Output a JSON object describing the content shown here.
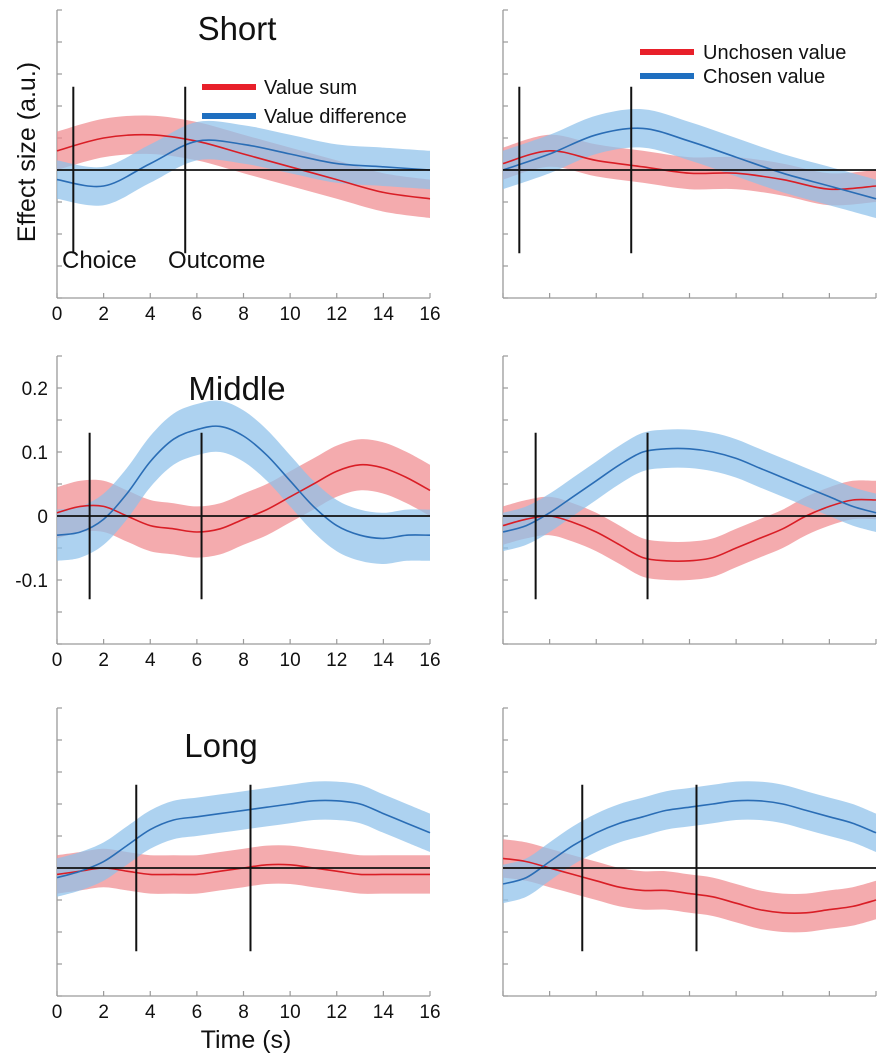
{
  "figure": {
    "ylabel": "Effect size (a.u.)",
    "xlabel": "Time (s)"
  },
  "legend_left": {
    "items": [
      {
        "label": "Value sum",
        "color": "#e8202a"
      },
      {
        "label": "Value difference",
        "color": "#1f6fc0"
      }
    ]
  },
  "legend_right": {
    "items": [
      {
        "label": "Unchosen value",
        "color": "#e8202a"
      },
      {
        "label": "Chosen value",
        "color": "#1f6fc0"
      }
    ]
  },
  "event_labels": {
    "choice": "Choice",
    "outcome": "Outcome"
  },
  "colors": {
    "red_line": "#d91e26",
    "red_band": "#f08a8f",
    "blue_line": "#2a6db5",
    "blue_band": "#8ec0ea"
  },
  "chart_data": [
    {
      "type": "line",
      "row": "Short",
      "column": "left",
      "title": "Short",
      "xlim": [
        0,
        16
      ],
      "ylim": [
        -0.2,
        0.25
      ],
      "x_ticks": [
        "0",
        "2",
        "4",
        "6",
        "8",
        "10",
        "12",
        "14",
        "16"
      ],
      "y_ticks": [],
      "events": [
        0.7,
        5.5
      ],
      "x": [
        0,
        2,
        4,
        6,
        8,
        10,
        12,
        14,
        16
      ],
      "series": [
        {
          "name": "Value sum",
          "color": "red",
          "values": [
            0.03,
            0.05,
            0.055,
            0.045,
            0.025,
            0.005,
            -0.015,
            -0.035,
            -0.045
          ],
          "ci": 0.03
        },
        {
          "name": "Value difference",
          "color": "blue",
          "values": [
            -0.015,
            -0.025,
            0.01,
            0.045,
            0.04,
            0.025,
            0.01,
            0.005,
            0.0
          ],
          "ci": 0.03
        }
      ]
    },
    {
      "type": "line",
      "row": "Short",
      "column": "right",
      "title": "",
      "xlim": [
        0,
        16
      ],
      "ylim": [
        -0.2,
        0.25
      ],
      "x_ticks": [],
      "y_ticks": [],
      "events": [
        0.7,
        5.5
      ],
      "x": [
        0,
        2,
        4,
        6,
        8,
        10,
        12,
        14,
        16
      ],
      "series": [
        {
          "name": "Unchosen value",
          "color": "red",
          "values": [
            0.01,
            0.03,
            0.015,
            0.005,
            -0.005,
            -0.005,
            -0.015,
            -0.03,
            -0.025
          ],
          "ci": 0.025
        },
        {
          "name": "Chosen value",
          "color": "blue",
          "values": [
            0.0,
            0.025,
            0.055,
            0.065,
            0.045,
            0.02,
            -0.005,
            -0.025,
            -0.045
          ],
          "ci": 0.03
        }
      ]
    },
    {
      "type": "line",
      "row": "Middle",
      "column": "left",
      "title": "Middle",
      "xlim": [
        0,
        16
      ],
      "ylim": [
        -0.2,
        0.25
      ],
      "x_ticks": [
        "0",
        "2",
        "4",
        "6",
        "8",
        "10",
        "12",
        "14",
        "16"
      ],
      "y_ticks": [
        {
          "value": -0.1,
          "label": "-0.1"
        },
        {
          "value": 0,
          "label": "0"
        },
        {
          "value": 0.1,
          "label": "0.1"
        },
        {
          "value": 0.2,
          "label": "0.2"
        }
      ],
      "events": [
        1.4,
        6.2
      ],
      "x": [
        0,
        1,
        2,
        3,
        4,
        5,
        6,
        7,
        8,
        9,
        10,
        11,
        12,
        13,
        14,
        15,
        16
      ],
      "series": [
        {
          "name": "Value sum",
          "color": "red",
          "values": [
            0.005,
            0.015,
            0.015,
            0.0,
            -0.015,
            -0.02,
            -0.025,
            -0.02,
            -0.005,
            0.01,
            0.03,
            0.05,
            0.07,
            0.08,
            0.075,
            0.06,
            0.04
          ],
          "ci": 0.04
        },
        {
          "name": "Value difference",
          "color": "blue",
          "values": [
            -0.03,
            -0.025,
            -0.005,
            0.035,
            0.085,
            0.12,
            0.135,
            0.14,
            0.125,
            0.095,
            0.055,
            0.015,
            -0.015,
            -0.03,
            -0.035,
            -0.03,
            -0.03
          ],
          "ci": 0.04
        }
      ]
    },
    {
      "type": "line",
      "row": "Middle",
      "column": "right",
      "title": "",
      "xlim": [
        0,
        16
      ],
      "ylim": [
        -0.2,
        0.25
      ],
      "x_ticks": [],
      "y_ticks": [],
      "events": [
        1.4,
        6.2
      ],
      "x": [
        0,
        1,
        2,
        3,
        4,
        5,
        6,
        7,
        8,
        9,
        10,
        11,
        12,
        13,
        14,
        15,
        16
      ],
      "series": [
        {
          "name": "Unchosen value",
          "color": "red",
          "values": [
            -0.015,
            -0.005,
            0.0,
            -0.01,
            -0.025,
            -0.045,
            -0.065,
            -0.07,
            -0.07,
            -0.065,
            -0.05,
            -0.035,
            -0.02,
            0.0,
            0.015,
            0.025,
            0.025
          ],
          "ci": 0.03
        },
        {
          "name": "Chosen value",
          "color": "blue",
          "values": [
            -0.025,
            -0.015,
            0.005,
            0.03,
            0.055,
            0.08,
            0.1,
            0.105,
            0.105,
            0.1,
            0.09,
            0.075,
            0.06,
            0.045,
            0.03,
            0.015,
            0.005
          ],
          "ci": 0.03
        }
      ]
    },
    {
      "type": "line",
      "row": "Long",
      "column": "left",
      "title": "Long",
      "xlim": [
        0,
        16
      ],
      "ylim": [
        -0.2,
        0.25
      ],
      "x_ticks": [
        "0",
        "2",
        "4",
        "6",
        "8",
        "10",
        "12",
        "14",
        "16"
      ],
      "y_ticks": [],
      "events": [
        3.4,
        8.3
      ],
      "x": [
        0,
        1,
        2,
        3,
        4,
        5,
        6,
        7,
        8,
        9,
        10,
        11,
        12,
        13,
        14,
        15,
        16
      ],
      "series": [
        {
          "name": "Value sum",
          "color": "red",
          "values": [
            -0.01,
            -0.005,
            0.0,
            -0.005,
            -0.01,
            -0.01,
            -0.01,
            -0.005,
            0.0,
            0.005,
            0.005,
            0.0,
            -0.005,
            -0.01,
            -0.01,
            -0.01,
            -0.01
          ],
          "ci": 0.03
        },
        {
          "name": "Value difference",
          "color": "blue",
          "values": [
            -0.015,
            -0.005,
            0.01,
            0.035,
            0.06,
            0.075,
            0.08,
            0.085,
            0.09,
            0.095,
            0.1,
            0.105,
            0.105,
            0.1,
            0.085,
            0.07,
            0.055
          ],
          "ci": 0.03
        }
      ]
    },
    {
      "type": "line",
      "row": "Long",
      "column": "right",
      "title": "",
      "xlim": [
        0,
        16
      ],
      "ylim": [
        -0.2,
        0.25
      ],
      "x_ticks": [],
      "y_ticks": [],
      "events": [
        3.4,
        8.3
      ],
      "x": [
        0,
        1,
        2,
        3,
        4,
        5,
        6,
        7,
        8,
        9,
        10,
        11,
        12,
        13,
        14,
        15,
        16
      ],
      "series": [
        {
          "name": "Unchosen value",
          "color": "red",
          "values": [
            0.015,
            0.01,
            0.0,
            -0.01,
            -0.02,
            -0.03,
            -0.035,
            -0.035,
            -0.04,
            -0.045,
            -0.055,
            -0.065,
            -0.07,
            -0.07,
            -0.065,
            -0.06,
            -0.05
          ],
          "ci": 0.03
        },
        {
          "name": "Chosen value",
          "color": "blue",
          "values": [
            -0.025,
            -0.015,
            0.01,
            0.035,
            0.055,
            0.07,
            0.08,
            0.09,
            0.095,
            0.1,
            0.105,
            0.105,
            0.1,
            0.09,
            0.08,
            0.07,
            0.055
          ],
          "ci": 0.03
        }
      ]
    }
  ]
}
